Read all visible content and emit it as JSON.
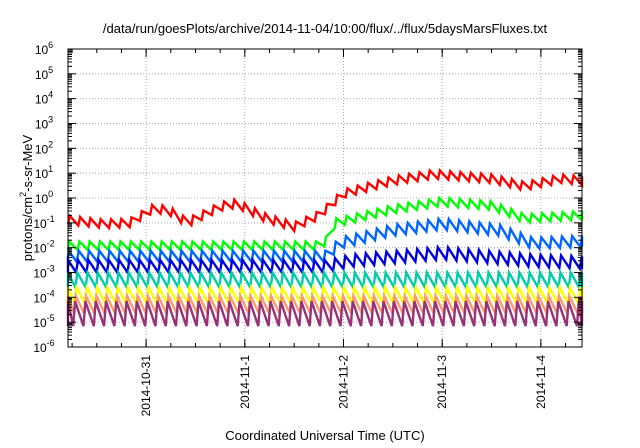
{
  "chart_data": {
    "type": "line",
    "title": "/data/run/goesPlots/archive/2014-11-04/10:00/flux/../flux/5daysMarsFluxes.txt",
    "xlabel": "Coordinated Universal Time (UTC)",
    "ylabel_parts": [
      "protons/cm",
      "2",
      "-s-sr-MeV"
    ],
    "y_scale": "log",
    "ylim_exp": [
      -6,
      6
    ],
    "xlim": [
      "2014-10-30 05:00",
      "2014-11-04 10:00"
    ],
    "x_ticks": [
      {
        "label": "2014-10-31",
        "time": "2014-10-31 00:00"
      },
      {
        "label": "2014-11-1",
        "time": "2014-11-01 00:00"
      },
      {
        "label": "2014-11-2",
        "time": "2014-11-02 00:00"
      },
      {
        "label": "2014-11-3",
        "time": "2014-11-03 00:00"
      },
      {
        "label": "2014-11-4",
        "time": "2014-11-04 00:00"
      }
    ],
    "grid": true,
    "sawtooth_period_hours": 2.5,
    "series": [
      {
        "color": "#ff0000",
        "sawtooth_decades": 0.35,
        "envelope": [
          {
            "t": "2014-10-30 05:00",
            "v": 0.13
          },
          {
            "t": "2014-10-30 14:00",
            "v": 0.09
          },
          {
            "t": "2014-10-30 20:00",
            "v": 0.1
          },
          {
            "t": "2014-10-31 02:00",
            "v": 0.4
          },
          {
            "t": "2014-10-31 06:00",
            "v": 0.28
          },
          {
            "t": "2014-10-31 10:00",
            "v": 0.1
          },
          {
            "t": "2014-10-31 18:00",
            "v": 0.45
          },
          {
            "t": "2014-10-31 22:00",
            "v": 0.6
          },
          {
            "t": "2014-11-01 05:00",
            "v": 0.16
          },
          {
            "t": "2014-11-01 12:00",
            "v": 0.07
          },
          {
            "t": "2014-11-01 18:00",
            "v": 0.2
          },
          {
            "t": "2014-11-02 00:00",
            "v": 1.5
          },
          {
            "t": "2014-11-02 12:00",
            "v": 5
          },
          {
            "t": "2014-11-02 22:00",
            "v": 9
          },
          {
            "t": "2014-11-03 12:00",
            "v": 6
          },
          {
            "t": "2014-11-03 20:00",
            "v": 3
          },
          {
            "t": "2014-11-04 05:00",
            "v": 6
          },
          {
            "t": "2014-11-04 10:00",
            "v": 5
          }
        ]
      },
      {
        "color": "#00ff00",
        "sawtooth_decades": 0.35,
        "envelope": [
          {
            "t": "2014-10-30 05:00",
            "v": 0.012
          },
          {
            "t": "2014-11-01 18:00",
            "v": 0.012
          },
          {
            "t": "2014-11-01 20:00",
            "v": 0.02
          },
          {
            "t": "2014-11-01 22:00",
            "v": 0.1
          },
          {
            "t": "2014-11-02 12:00",
            "v": 0.35
          },
          {
            "t": "2014-11-03 00:00",
            "v": 0.7
          },
          {
            "t": "2014-11-03 12:00",
            "v": 0.5
          },
          {
            "t": "2014-11-03 20:00",
            "v": 0.15
          },
          {
            "t": "2014-11-04 10:00",
            "v": 0.2
          }
        ]
      },
      {
        "color": "#0066ff",
        "sawtooth_decades": 0.45,
        "envelope": [
          {
            "t": "2014-10-30 05:00",
            "v": 0.0045
          },
          {
            "t": "2014-11-01 20:00",
            "v": 0.0045
          },
          {
            "t": "2014-11-01 23:00",
            "v": 0.015
          },
          {
            "t": "2014-11-02 12:00",
            "v": 0.05
          },
          {
            "t": "2014-11-03 00:00",
            "v": 0.09
          },
          {
            "t": "2014-11-03 14:00",
            "v": 0.05
          },
          {
            "t": "2014-11-03 22:00",
            "v": 0.015
          },
          {
            "t": "2014-11-04 10:00",
            "v": 0.018
          }
        ]
      },
      {
        "color": "#0000dd",
        "sawtooth_decades": 0.5,
        "envelope": [
          {
            "t": "2014-10-30 05:00",
            "v": 0.0018
          },
          {
            "t": "2014-11-01 20:00",
            "v": 0.0018
          },
          {
            "t": "2014-11-02 02:00",
            "v": 0.003
          },
          {
            "t": "2014-11-03 00:00",
            "v": 0.006
          },
          {
            "t": "2014-11-03 22:00",
            "v": 0.003
          },
          {
            "t": "2014-11-04 10:00",
            "v": 0.0025
          }
        ]
      },
      {
        "color": "#00ccaa",
        "sawtooth_decades": 0.6,
        "envelope": [
          {
            "t": "2014-10-30 05:00",
            "v": 0.0005
          },
          {
            "t": "2014-11-04 10:00",
            "v": 0.0005
          }
        ]
      },
      {
        "color": "#ffff00",
        "sawtooth_decades": 0.65,
        "envelope": [
          {
            "t": "2014-10-30 05:00",
            "v": 0.00012
          },
          {
            "t": "2014-11-04 10:00",
            "v": 0.00012
          }
        ]
      },
      {
        "color": "#ff9966",
        "sawtooth_decades": 0.7,
        "envelope": [
          {
            "t": "2014-10-30 05:00",
            "v": 5e-05
          },
          {
            "t": "2014-11-04 10:00",
            "v": 5e-05
          }
        ]
      },
      {
        "color": "#993377",
        "sawtooth_decades": 1.0,
        "envelope": [
          {
            "t": "2014-10-30 05:00",
            "v": 2.2e-05
          },
          {
            "t": "2014-11-04 10:00",
            "v": 2.2e-05
          }
        ]
      }
    ]
  }
}
